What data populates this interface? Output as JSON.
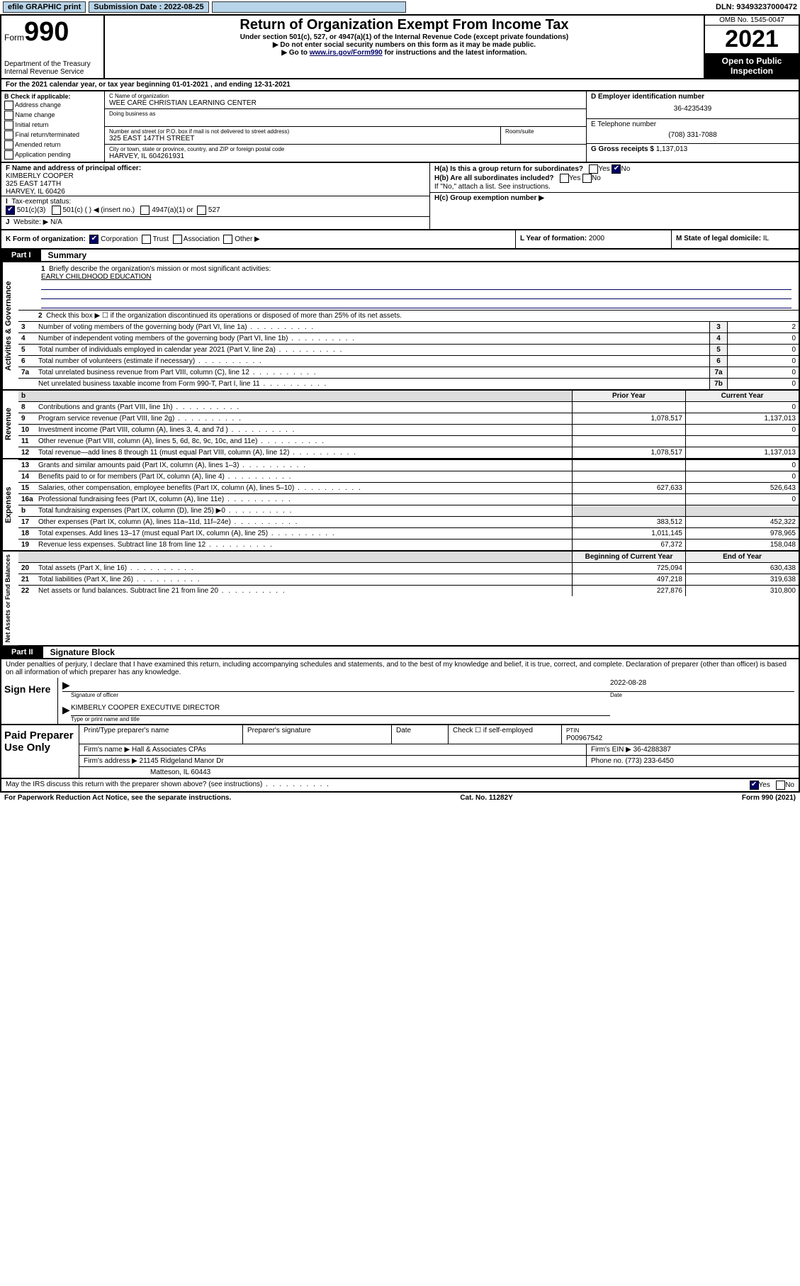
{
  "topbar": {
    "efile": "efile GRAPHIC print",
    "subdate_lbl": "Submission Date : 2022-08-25",
    "dln": "DLN: 93493237000472"
  },
  "header": {
    "form_word": "Form",
    "form_no": "990",
    "dept": "Department of the Treasury\nInternal Revenue Service",
    "title": "Return of Organization Exempt From Income Tax",
    "sub1": "Under section 501(c), 527, or 4947(a)(1) of the Internal Revenue Code (except private foundations)",
    "sub2": "▶ Do not enter social security numbers on this form as it may be made public.",
    "sub3_pre": "▶ Go to ",
    "sub3_link": "www.irs.gov/Form990",
    "sub3_post": " for instructions and the latest information.",
    "omb": "OMB No. 1545-0047",
    "year": "2021",
    "openpub": "Open to Public Inspection"
  },
  "period": "For the 2021 calendar year, or tax year beginning 01-01-2021    , and ending 12-31-2021",
  "boxB": {
    "title": "B Check if applicable:",
    "items": [
      "Address change",
      "Name change",
      "Initial return",
      "Final return/terminated",
      "Amended return",
      "Application pending"
    ]
  },
  "boxC": {
    "lbl_name": "C Name of organization",
    "org": "WEE CARE CHRISTIAN LEARNING CENTER",
    "dba_lbl": "Doing business as",
    "addr_lbl": "Number and street (or P.O. box if mail is not delivered to street address)",
    "room_lbl": "Room/suite",
    "addr": "325 EAST 147TH STREET",
    "city_lbl": "City or town, state or province, country, and ZIP or foreign postal code",
    "city": "HARVEY, IL  604261931"
  },
  "boxD": {
    "lbl": "D Employer identification number",
    "val": "36-4235439"
  },
  "boxE": {
    "lbl": "E Telephone number",
    "val": "(708) 331-7088"
  },
  "boxG": {
    "lbl": "G Gross receipts $",
    "val": "1,137,013"
  },
  "boxF": {
    "lbl": "F Name and address of principal officer:",
    "name": "KIMBERLY COOPER",
    "addr1": "325 EAST 147TH",
    "addr2": "HARVEY, IL  60426"
  },
  "boxH": {
    "a": "H(a)  Is this a group return for subordinates?",
    "b": "H(b)  Are all subordinates included?",
    "note": "If \"No,\" attach a list. See instructions.",
    "c": "H(c)  Group exemption number ▶"
  },
  "yesno": {
    "yes": "Yes",
    "no": "No"
  },
  "lineI": {
    "lbl": "Tax-exempt status:",
    "o1": "501(c)(3)",
    "o2": "501(c) (  ) ◀ (insert no.)",
    "o3": "4947(a)(1) or",
    "o4": "527"
  },
  "lineJ": {
    "lbl": "Website: ▶",
    "val": "N/A"
  },
  "lineK": {
    "lbl": "K Form of organization:",
    "o1": "Corporation",
    "o2": "Trust",
    "o3": "Association",
    "o4": "Other ▶"
  },
  "lineL": {
    "lbl": "L Year of formation:",
    "val": "2000"
  },
  "lineM": {
    "lbl": "M State of legal domicile:",
    "val": "IL"
  },
  "partI": {
    "tab": "Part I",
    "title": "Summary"
  },
  "actgov": {
    "vlabel": "Activities & Governance",
    "l1": "Briefly describe the organization's mission or most significant activities:",
    "mission": "EARLY CHILDHOOD EDUCATION",
    "l2": "Check this box ▶ ☐  if the organization discontinued its operations or disposed of more than 25% of its net assets.",
    "rows": [
      {
        "n": "3",
        "t": "Number of voting members of the governing body (Part VI, line 1a)",
        "k": "3",
        "v": "2"
      },
      {
        "n": "4",
        "t": "Number of independent voting members of the governing body (Part VI, line 1b)",
        "k": "4",
        "v": "0"
      },
      {
        "n": "5",
        "t": "Total number of individuals employed in calendar year 2021 (Part V, line 2a)",
        "k": "5",
        "v": "0"
      },
      {
        "n": "6",
        "t": "Total number of volunteers (estimate if necessary)",
        "k": "6",
        "v": "0"
      },
      {
        "n": "7a",
        "t": "Total unrelated business revenue from Part VIII, column (C), line 12",
        "k": "7a",
        "v": "0"
      },
      {
        "n": "",
        "t": "Net unrelated business taxable income from Form 990-T, Part I, line 11",
        "k": "7b",
        "v": "0"
      }
    ]
  },
  "finhdr": {
    "py": "Prior Year",
    "cy": "Current Year"
  },
  "revenue": {
    "vlabel": "Revenue",
    "rows": [
      {
        "n": "8",
        "t": "Contributions and grants (Part VIII, line 1h)",
        "py": "",
        "cy": "0"
      },
      {
        "n": "9",
        "t": "Program service revenue (Part VIII, line 2g)",
        "py": "1,078,517",
        "cy": "1,137,013"
      },
      {
        "n": "10",
        "t": "Investment income (Part VIII, column (A), lines 3, 4, and 7d )",
        "py": "",
        "cy": "0"
      },
      {
        "n": "11",
        "t": "Other revenue (Part VIII, column (A), lines 5, 6d, 8c, 9c, 10c, and 11e)",
        "py": "",
        "cy": ""
      },
      {
        "n": "12",
        "t": "Total revenue—add lines 8 through 11 (must equal Part VIII, column (A), line 12)",
        "py": "1,078,517",
        "cy": "1,137,013"
      }
    ]
  },
  "expenses": {
    "vlabel": "Expenses",
    "rows": [
      {
        "n": "13",
        "t": "Grants and similar amounts paid (Part IX, column (A), lines 1–3)",
        "py": "",
        "cy": "0"
      },
      {
        "n": "14",
        "t": "Benefits paid to or for members (Part IX, column (A), line 4)",
        "py": "",
        "cy": "0"
      },
      {
        "n": "15",
        "t": "Salaries, other compensation, employee benefits (Part IX, column (A), lines 5–10)",
        "py": "627,633",
        "cy": "526,643"
      },
      {
        "n": "16a",
        "t": "Professional fundraising fees (Part IX, column (A), line 11e)",
        "py": "",
        "cy": "0"
      },
      {
        "n": "b",
        "t": "Total fundraising expenses (Part IX, column (D), line 25) ▶0",
        "py": "shade",
        "cy": "shade"
      },
      {
        "n": "17",
        "t": "Other expenses (Part IX, column (A), lines 11a–11d, 11f–24e)",
        "py": "383,512",
        "cy": "452,322"
      },
      {
        "n": "18",
        "t": "Total expenses. Add lines 13–17 (must equal Part IX, column (A), line 25)",
        "py": "1,011,145",
        "cy": "978,965"
      },
      {
        "n": "19",
        "t": "Revenue less expenses. Subtract line 18 from line 12",
        "py": "67,372",
        "cy": "158,048"
      }
    ]
  },
  "netassets": {
    "vlabel": "Net Assets or Fund Balances",
    "hdr_py": "Beginning of Current Year",
    "hdr_cy": "End of Year",
    "rows": [
      {
        "n": "20",
        "t": "Total assets (Part X, line 16)",
        "py": "725,094",
        "cy": "630,438"
      },
      {
        "n": "21",
        "t": "Total liabilities (Part X, line 26)",
        "py": "497,218",
        "cy": "319,638"
      },
      {
        "n": "22",
        "t": "Net assets or fund balances. Subtract line 21 from line 20",
        "py": "227,876",
        "cy": "310,800"
      }
    ]
  },
  "partII": {
    "tab": "Part II",
    "title": "Signature Block"
  },
  "sig": {
    "decl": "Under penalties of perjury, I declare that I have examined this return, including accompanying schedules and statements, and to the best of my knowledge and belief, it is true, correct, and complete. Declaration of preparer (other than officer) is based on all information of which preparer has any knowledge.",
    "signhere": "Sign Here",
    "sig_lbl": "Signature of officer",
    "date_lbl": "Date",
    "date_val": "2022-08-28",
    "name": "KIMBERLY COOPER  EXECUTIVE DIRECTOR",
    "name_lbl": "Type or print name and title"
  },
  "prep": {
    "left": "Paid Preparer Use Only",
    "h1": "Print/Type preparer's name",
    "h2": "Preparer's signature",
    "h3": "Date",
    "h4": "Check ☐ if self-employed",
    "h5_lbl": "PTIN",
    "h5": "P00967542",
    "firm_lbl": "Firm's name   ▶",
    "firm": "Hall & Associates CPAs",
    "ein_lbl": "Firm's EIN ▶",
    "ein": "36-4288387",
    "addr_lbl": "Firm's address ▶",
    "addr": "21145 Ridgeland Manor Dr",
    "addr2": "Matteson, IL  60443",
    "phone_lbl": "Phone no.",
    "phone": "(773) 233-6450"
  },
  "footer": {
    "q": "May the IRS discuss this return with the preparer shown above? (see instructions)",
    "pra": "For Paperwork Reduction Act Notice, see the separate instructions.",
    "cat": "Cat. No. 11282Y",
    "form": "Form 990 (2021)"
  }
}
